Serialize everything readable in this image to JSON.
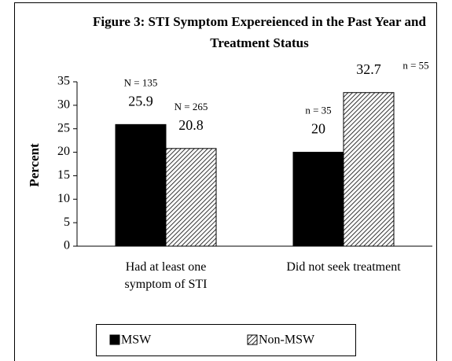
{
  "chart_data": {
    "type": "bar",
    "title": "Figure 3: STI Symptom Expereienced in the Past Year and Treatment Status",
    "ylabel": "Percent",
    "categories": [
      "Had at least one\nsymptom of STI",
      "Did not seek treatment"
    ],
    "series": [
      {
        "name": "MSW",
        "color": "#000000",
        "hatch": false,
        "values": [
          25.9,
          20
        ],
        "notes": [
          "N = 135",
          "n = 35"
        ]
      },
      {
        "name": "Non-MSW",
        "color": "#000000",
        "hatch": true,
        "values": [
          20.8,
          32.7
        ],
        "notes": [
          "N = 265",
          "n = 55"
        ]
      }
    ],
    "ylim": [
      0,
      35
    ],
    "yticks": [
      0,
      5,
      10,
      15,
      20,
      25,
      30,
      35
    ],
    "grid": false,
    "legend": "bottom"
  }
}
